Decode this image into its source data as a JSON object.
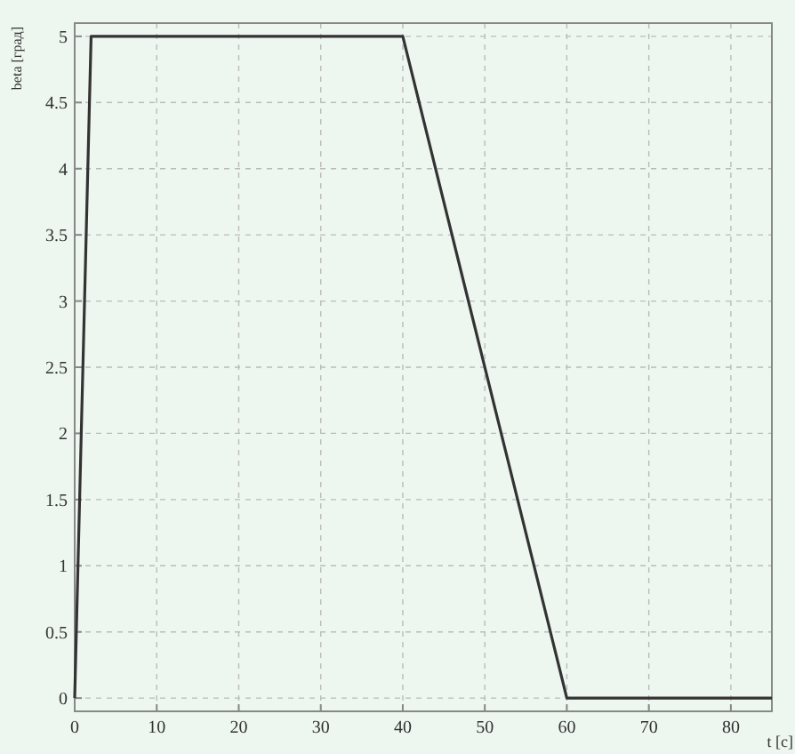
{
  "chart_data": {
    "type": "line",
    "ylabel": "beta [град]",
    "xlabel": "t [c]",
    "x": [
      0,
      2,
      40,
      60,
      85
    ],
    "series": [
      {
        "color": "#333333",
        "values": [
          0,
          5,
          5,
          0,
          0
        ]
      }
    ],
    "xlim": [
      0,
      85
    ],
    "ylim": [
      -0.1,
      5.1
    ],
    "xticks": [
      0,
      10,
      20,
      30,
      40,
      50,
      60,
      70,
      80
    ],
    "yticks": [
      0,
      0.5,
      1,
      1.5,
      2,
      2.5,
      3,
      3.5,
      4,
      4.5,
      5
    ],
    "grid": true,
    "line_style": "solid",
    "marker": "none"
  }
}
